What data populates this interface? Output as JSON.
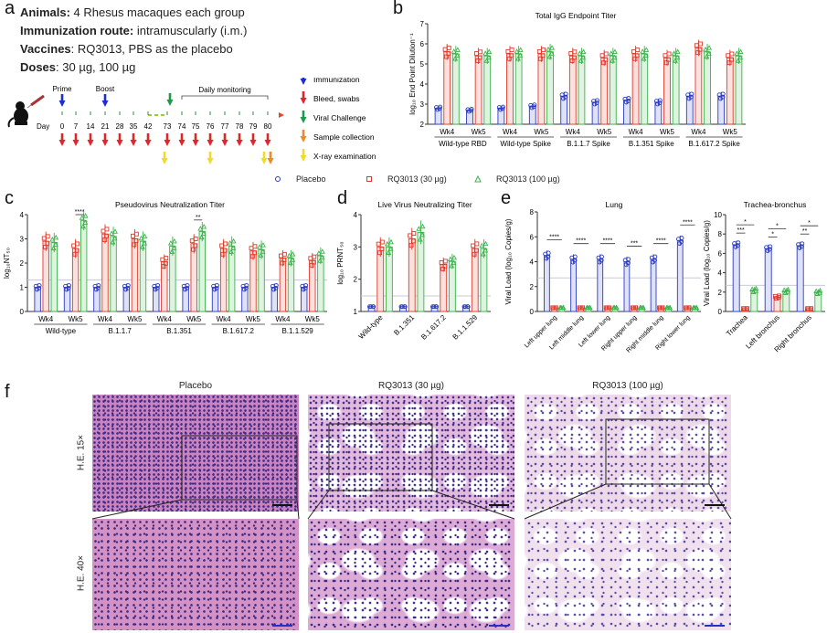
{
  "panel_labels": {
    "a": "a",
    "b": "b",
    "c": "c",
    "d": "d",
    "e": "e",
    "f": "f"
  },
  "study": {
    "animals_label": "Animals:",
    "animals": " 4 Rhesus macaques each group",
    "route_label": "Immunization route:",
    "route": " intramuscularly (i.m.)",
    "vaccines_label": "Vaccines",
    "vaccines": ": RQ3013, PBS as the placebo",
    "doses_label": "Doses",
    "doses": ": 30 µg, 100 µg"
  },
  "timeline": {
    "day_label": "Day",
    "prime": "Prime",
    "boost": "Boost",
    "daily_monitoring": "Daily monitoring",
    "days": [
      "0",
      "7",
      "14",
      "21",
      "28",
      "35",
      "42",
      "73",
      "74",
      "75",
      "76",
      "77",
      "78",
      "79",
      "80"
    ],
    "legend": [
      {
        "label": "Immunization",
        "color": "#1a2fd0"
      },
      {
        "label": "Bleed, swabs",
        "color": "#e0262a"
      },
      {
        "label": "Viral Challenge",
        "color": "#1a9c4a"
      },
      {
        "label": "Sample collection",
        "color": "#f08a24"
      },
      {
        "label": "X-ray examination",
        "color": "#f2d92a"
      }
    ]
  },
  "legend": [
    {
      "label": "Placebo",
      "marker": "circle",
      "color": "#2b3cc4"
    },
    {
      "label": "RQ3013 (30 µg)",
      "marker": "square",
      "color": "#e03a2a"
    },
    {
      "label": "RQ3013 (100 µg)",
      "marker": "triangle",
      "color": "#3bb34a"
    }
  ],
  "chart_data": [
    {
      "id": "b",
      "type": "bar",
      "title": "Total IgG Endpoint Titer",
      "ylabel": "log₁₀ End Point Dilution⁻¹",
      "ylim": [
        2,
        7
      ],
      "yticks": [
        "2",
        "3",
        "4",
        "5",
        "6",
        "7"
      ],
      "groups": [
        {
          "label": "Wild-type RBD",
          "items": [
            "Wk4",
            "Wk5"
          ]
        },
        {
          "label": "Wild-type Spike",
          "items": [
            "Wk4",
            "Wk5"
          ]
        },
        {
          "label": "B.1.1.7 Spike",
          "items": [
            "Wk4",
            "Wk5"
          ]
        },
        {
          "label": "B.1.351 Spike",
          "items": [
            "Wk4",
            "Wk5"
          ]
        },
        {
          "label": "B.1.617.2 Spike",
          "items": [
            "Wk4",
            "Wk5"
          ]
        }
      ],
      "series": [
        {
          "name": "Placebo",
          "values": [
            2.8,
            2.7,
            2.8,
            2.9,
            3.4,
            3.1,
            3.2,
            3.1,
            3.4,
            3.4
          ]
        },
        {
          "name": "RQ3013 (30 µg)",
          "values": [
            5.6,
            5.4,
            5.5,
            5.5,
            5.4,
            5.3,
            5.5,
            5.3,
            5.8,
            5.3
          ]
        },
        {
          "name": "RQ3013 (100 µg)",
          "values": [
            5.5,
            5.4,
            5.5,
            5.6,
            5.4,
            5.4,
            5.5,
            5.4,
            5.6,
            5.4
          ]
        }
      ],
      "significance": []
    },
    {
      "id": "c",
      "type": "bar",
      "title": "Pseudovirus Neutralization Titer",
      "ylabel": "log₁₀NT₅₀",
      "ylim": [
        0,
        4
      ],
      "yticks": [
        "0",
        "1",
        "2",
        "3",
        "4"
      ],
      "limit_of_detection": 1.3,
      "groups": [
        {
          "label": "Wild-type",
          "items": [
            "Wk4",
            "Wk5"
          ]
        },
        {
          "label": "B.1.1.7",
          "items": [
            "Wk4",
            "Wk5"
          ]
        },
        {
          "label": "B.1.351",
          "items": [
            "Wk4",
            "Wk5"
          ]
        },
        {
          "label": "B.1.617.2",
          "items": [
            "Wk4",
            "Wk5"
          ]
        },
        {
          "label": "B.1.1.529",
          "items": [
            "Wk4",
            "Wk5"
          ]
        }
      ],
      "series": [
        {
          "name": "Placebo",
          "values": [
            1,
            1,
            1,
            1,
            1,
            1,
            1,
            1,
            1,
            1
          ]
        },
        {
          "name": "RQ3013 (30 µg)",
          "values": [
            2.9,
            2.6,
            3.2,
            3.0,
            2.05,
            2.8,
            2.6,
            2.5,
            2.2,
            2.1
          ]
        },
        {
          "name": "RQ3013 (100 µg)",
          "values": [
            2.85,
            3.75,
            3.1,
            2.9,
            2.7,
            3.3,
            2.7,
            2.55,
            2.2,
            2.3
          ]
        }
      ],
      "significance": [
        {
          "index": 1,
          "from": 1,
          "to": 2,
          "label": "****"
        },
        {
          "index": 5,
          "from": 1,
          "to": 2,
          "label": "**"
        }
      ]
    },
    {
      "id": "d",
      "type": "bar",
      "title": "Live Virus Neutralizing Titer",
      "ylabel": "log₁₀ PRNT₅₀",
      "ylim": [
        1,
        4
      ],
      "yticks": [
        "1",
        "2",
        "3",
        "4"
      ],
      "limit_of_detection": 1.48,
      "categories": [
        "Wild-type",
        "B.1.351",
        "B.1.617.2",
        "B.1.1.529"
      ],
      "series": [
        {
          "name": "Placebo",
          "values": [
            1.15,
            1.15,
            1.15,
            1.15
          ]
        },
        {
          "name": "RQ3013 (30 µg)",
          "values": [
            3.0,
            3.25,
            2.45,
            2.95
          ]
        },
        {
          "name": "RQ3013 (100 µg)",
          "values": [
            3.0,
            3.45,
            2.55,
            2.95
          ]
        }
      ],
      "significance": []
    },
    {
      "id": "e_lung",
      "type": "bar",
      "title": "Lung",
      "ylabel": "Viral Load (log₁₀ Copies/g)",
      "ylim": [
        0,
        8
      ],
      "yticks": [
        "0",
        "2",
        "4",
        "6",
        "8"
      ],
      "limit_of_detection": 2.7,
      "categories": [
        "Left upper lung",
        "Left middle lung",
        "Left lower lung",
        "Right upper lung",
        "Right middle lung",
        "Right lower lung"
      ],
      "series": [
        {
          "name": "Placebo",
          "values": [
            4.5,
            4.2,
            4.2,
            4.0,
            4.2,
            5.7
          ]
        },
        {
          "name": "RQ3013 (30 µg)",
          "values": [
            0.3,
            0.3,
            0.3,
            0.3,
            0.3,
            0.3
          ]
        },
        {
          "name": "RQ3013 (100 µg)",
          "values": [
            0.3,
            0.3,
            0.3,
            0.3,
            0.3,
            0.3
          ]
        }
      ],
      "significance": [
        {
          "index": 0,
          "from": 0,
          "to": 2,
          "label": "****"
        },
        {
          "index": 1,
          "from": 0,
          "to": 2,
          "label": "****"
        },
        {
          "index": 2,
          "from": 0,
          "to": 2,
          "label": "****"
        },
        {
          "index": 3,
          "from": 0,
          "to": 2,
          "label": "***"
        },
        {
          "index": 4,
          "from": 0,
          "to": 2,
          "label": "****"
        },
        {
          "index": 5,
          "from": 0,
          "to": 2,
          "label": "****"
        }
      ]
    },
    {
      "id": "e_trachea",
      "type": "bar",
      "title": "Trachea-bronchus",
      "ylabel": "Viral Load (log₁₀ Copies/g)",
      "ylim": [
        0,
        10
      ],
      "yticks": [
        "0",
        "2",
        "4",
        "6",
        "8",
        "10"
      ],
      "limit_of_detection": 2.7,
      "categories": [
        "Trachea",
        "Left bronchus",
        "Right bronchus"
      ],
      "series": [
        {
          "name": "Placebo",
          "values": [
            6.9,
            6.5,
            6.8
          ]
        },
        {
          "name": "RQ3013 (30 µg)",
          "values": [
            0.3,
            1.5,
            0.3
          ]
        },
        {
          "name": "RQ3013 (100 µg)",
          "values": [
            2.2,
            2.1,
            2.0
          ]
        }
      ],
      "significance": [
        {
          "index": 0,
          "from": 0,
          "to": 1,
          "label": "***",
          "level": 0
        },
        {
          "index": 0,
          "from": 0,
          "to": 2,
          "label": "*",
          "level": 1
        },
        {
          "index": 1,
          "from": 0,
          "to": 1,
          "label": "*",
          "level": 0
        },
        {
          "index": 1,
          "from": 0,
          "to": 2,
          "label": "*",
          "level": 1
        },
        {
          "index": 2,
          "from": 0,
          "to": 1,
          "label": "**",
          "level": 0
        },
        {
          "index": 2,
          "from": 0,
          "to": 2,
          "label": "*",
          "level": 1
        }
      ]
    }
  ],
  "histology": {
    "columns": [
      "Placebo",
      "RQ3013 (30 µg)",
      "RQ3013 (100 µg)"
    ],
    "rows": [
      "H.E. 15×",
      "H.E. 40×"
    ]
  }
}
